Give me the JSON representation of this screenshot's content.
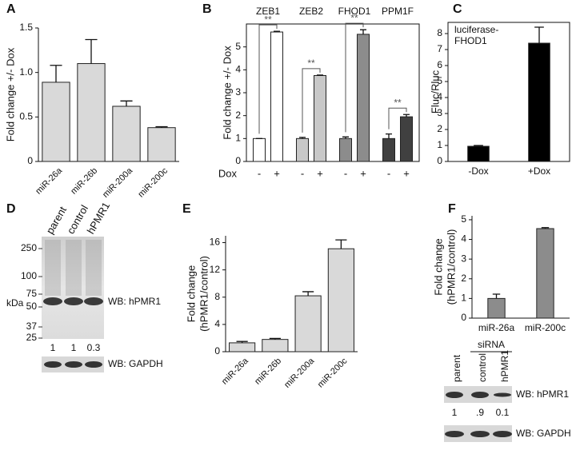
{
  "chart_data": [
    {
      "type": "bar",
      "panel": "A",
      "ylabel": "Fold change +/- Dox",
      "categories": [
        "miR-26a",
        "miR-26b",
        "miR-200a",
        "miR-200c"
      ],
      "values": [
        0.89,
        1.1,
        0.62,
        0.38
      ],
      "errors": [
        0.19,
        0.27,
        0.06,
        0.01
      ],
      "color": "#d9d9d9",
      "ylim": [
        0,
        1.5
      ],
      "yticks": [
        0,
        0.5,
        {
          "value": 1,
          "label": "1.0"
        },
        1.5
      ]
    },
    {
      "type": "grouped_bar",
      "panel": "B",
      "ylabel": "Fold change +/- Dox",
      "xlabel": "Dox",
      "categories": [
        "ZEB1",
        "ZEB2",
        "FHOD1",
        "PPM1F"
      ],
      "category_colors": [
        "#ffffff",
        "#c8c8c8",
        "#8c8c8c",
        "#404040"
      ],
      "series": [
        {
          "name": "-",
          "values": [
            1,
            1,
            1,
            1
          ],
          "errors": [
            0,
            0.05,
            0.07,
            0.2
          ]
        },
        {
          "name": "+",
          "values": [
            5.65,
            3.75,
            5.55,
            1.95
          ],
          "errors": [
            0.03,
            0.02,
            0.2,
            0.1
          ]
        }
      ],
      "significance": [
        "**",
        "**",
        "**",
        "**"
      ],
      "ylim": [
        0,
        6
      ],
      "yticks": [
        0,
        1,
        2,
        3,
        4,
        5
      ]
    },
    {
      "type": "bar",
      "panel": "C",
      "ylabel": "Fluc/Rluc",
      "annotation": [
        "luciferase-",
        "FHOD1"
      ],
      "categories": [
        "-Dox",
        "+Dox"
      ],
      "values": [
        0.95,
        7.4
      ],
      "errors": [
        0.05,
        1.0
      ],
      "color": "#000000",
      "ylim": [
        0,
        8.7
      ],
      "yticks": [
        0,
        1,
        2,
        3,
        4,
        5,
        6,
        7,
        8
      ]
    },
    {
      "type": "bar",
      "panel": "E",
      "ylabel": [
        "Fold change",
        "(hPMR1/control)"
      ],
      "categories": [
        "miR-26a",
        "miR-26b",
        "miR-200a",
        "miR-200c"
      ],
      "values": [
        1.3,
        1.8,
        8.2,
        15.1
      ],
      "errors": [
        0.2,
        0.15,
        0.6,
        1.3
      ],
      "color": "#d9d9d9",
      "ylim": [
        0,
        17
      ],
      "yticks": [
        0,
        4,
        8,
        12,
        16
      ]
    },
    {
      "type": "bar",
      "panel": "F",
      "ylabel": [
        "Fold change",
        "(hPMR1/control)"
      ],
      "categories": [
        "miR-26a",
        "miR-200c"
      ],
      "values": [
        1.0,
        4.55
      ],
      "errors": [
        0.22,
        0.05
      ],
      "color": "#8c8c8c",
      "ylim": [
        0,
        5.2
      ],
      "yticks": [
        0,
        1,
        2,
        3,
        4,
        5
      ]
    }
  ],
  "blots": [
    {
      "panel": "D",
      "lanes": [
        "parent",
        "control",
        "hPMR1"
      ],
      "markers": [
        "250",
        "100",
        "75",
        "50",
        "37",
        "25"
      ],
      "marker_unit": "kDa",
      "labels": [
        "WB: hPMR1",
        "WB: GAPDH"
      ],
      "quant": [
        "1",
        "1",
        "0.3"
      ]
    },
    {
      "group_label": "siRNA",
      "lanes": [
        "parent",
        "control",
        "hPMR1"
      ],
      "labels": [
        "WB: hPMR1",
        "WB: GAPDH"
      ],
      "quant": [
        "1",
        ".9",
        "0.1"
      ]
    }
  ]
}
